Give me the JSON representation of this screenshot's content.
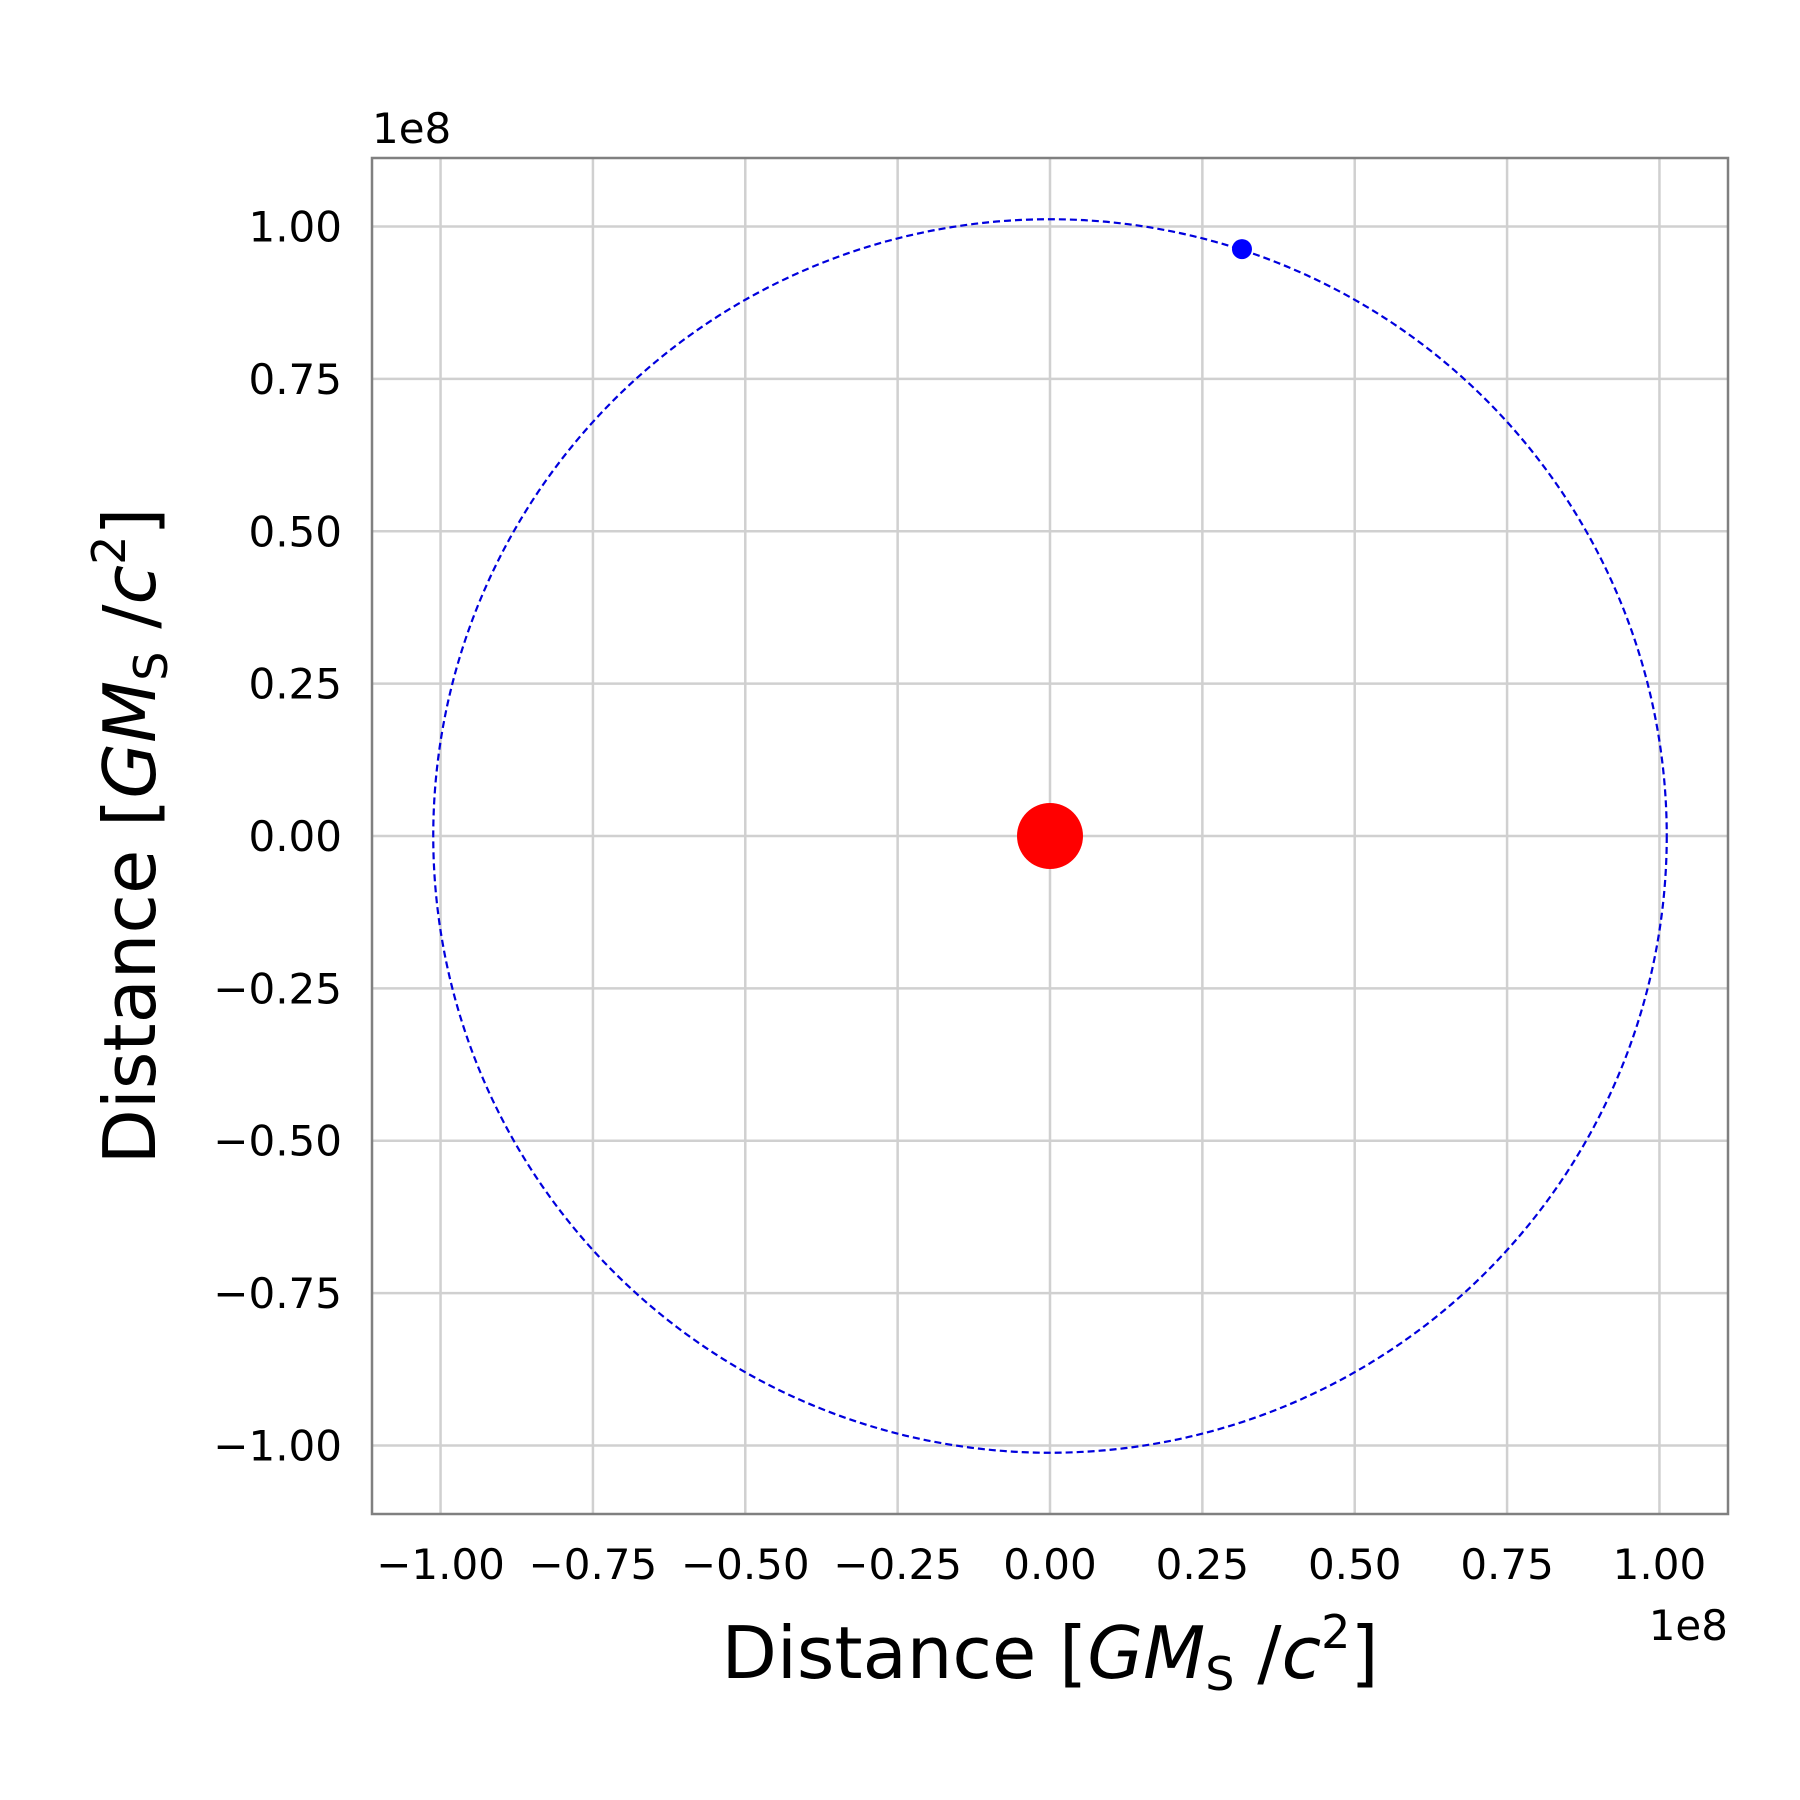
{
  "chart_data": {
    "type": "scatter",
    "title": "",
    "xlabel": {
      "prefix": "Distance [",
      "var": "GM",
      "sub": "S",
      "sep": " /",
      "c": "c",
      "sup": "2",
      "suffix": "]"
    },
    "ylabel": {
      "prefix": "Distance [",
      "var": "GM",
      "sub": "S",
      "sep": " /",
      "c": "c",
      "sup": "2",
      "suffix": "]"
    },
    "x_offset_text": "1e8",
    "y_offset_text": "1e8",
    "scale": 100000000,
    "xlim": [
      -1.1125,
      1.1125
    ],
    "ylim": [
      -1.1125,
      1.1125
    ],
    "grid": true,
    "xticks": [
      -1.0,
      -0.75,
      -0.5,
      -0.25,
      0.0,
      0.25,
      0.5,
      0.75,
      1.0
    ],
    "xtick_labels": [
      "−1.00",
      "−0.75",
      "−0.50",
      "−0.25",
      "0.00",
      "0.25",
      "0.50",
      "0.75",
      "1.00"
    ],
    "yticks": [
      1.0,
      0.75,
      0.5,
      0.25,
      0.0,
      -0.25,
      -0.5,
      -0.75,
      -1.0
    ],
    "ytick_labels": [
      "1.00",
      "0.75",
      "0.50",
      "0.25",
      "0.00",
      "−0.25",
      "−0.50",
      "−0.75",
      "−1.00"
    ],
    "series": [
      {
        "kind": "orbit",
        "style": "dashed",
        "color": "#0000dd",
        "center": [
          0.0,
          0.0
        ],
        "radius": 1.012
      },
      {
        "kind": "central-body",
        "color": "#ff0000",
        "point": [
          0.0,
          0.0
        ]
      },
      {
        "kind": "orbiting-body",
        "color": "#0000ff",
        "point": [
          0.315,
          0.963
        ]
      }
    ]
  }
}
